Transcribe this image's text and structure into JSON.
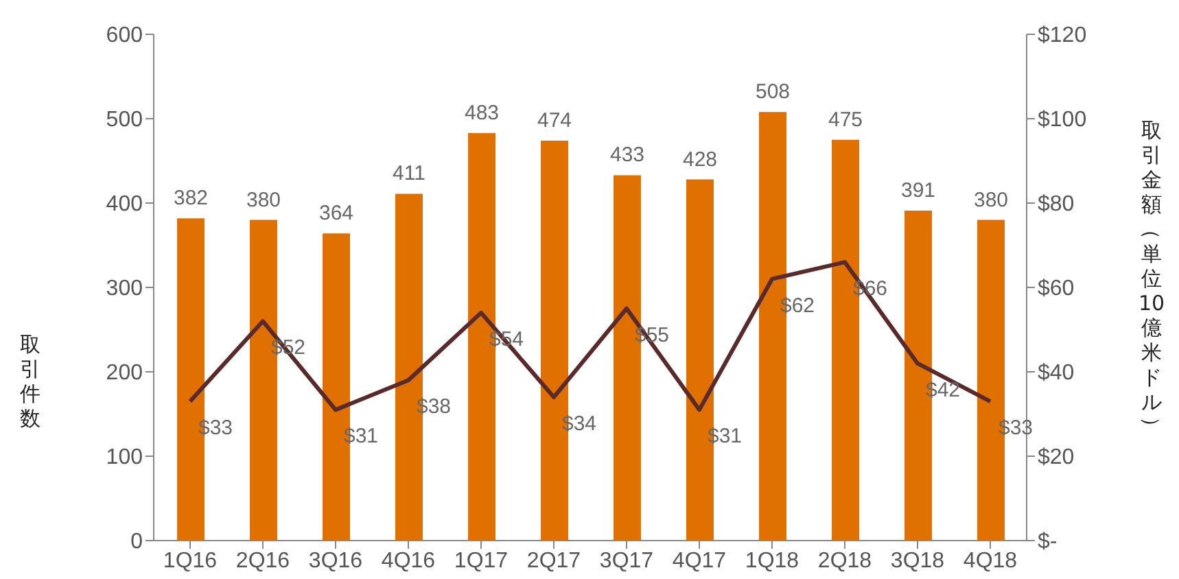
{
  "chart_data": {
    "type": "bar",
    "ylabel": "取引件数",
    "y2label": "取引金額（単位10億米ドル）",
    "categories": [
      "1Q16",
      "2Q16",
      "3Q16",
      "4Q16",
      "1Q17",
      "2Q17",
      "3Q17",
      "4Q17",
      "1Q18",
      "2Q18",
      "3Q18",
      "4Q18"
    ],
    "series": [
      {
        "color": "#e07000",
        "values": [
          382,
          380,
          364,
          411,
          483,
          474,
          433,
          428,
          508,
          475,
          391,
          380
        ],
        "value_labels": [
          "382",
          "380",
          "364",
          "411",
          "483",
          "474",
          "433",
          "428",
          "508",
          "475",
          "391",
          "380"
        ]
      },
      {
        "type": "line",
        "axis": "y2",
        "color": "#5a2a2a",
        "values": [
          33,
          52,
          31,
          38,
          54,
          34,
          55,
          31,
          62,
          66,
          42,
          33
        ],
        "value_labels": [
          "$33",
          "$52",
          "$31",
          "$38",
          "$54",
          "$34",
          "$55",
          "$31",
          "$62",
          "$66",
          "$42",
          "$33"
        ]
      }
    ],
    "ylim": [
      0,
      600
    ],
    "yticks": [
      0,
      100,
      200,
      300,
      400,
      500,
      600
    ],
    "y2lim": [
      0,
      120
    ],
    "y2ticks": [
      {
        "value": 0,
        "label": "$-"
      },
      {
        "value": 20,
        "label": "$20"
      },
      {
        "value": 40,
        "label": "$40"
      },
      {
        "value": 60,
        "label": "$60"
      },
      {
        "value": 80,
        "label": "$80"
      },
      {
        "value": 100,
        "label": "$100"
      },
      {
        "value": 120,
        "label": "$120"
      }
    ],
    "grid": false,
    "legend": false,
    "marker": "none",
    "line_style": "solid"
  }
}
